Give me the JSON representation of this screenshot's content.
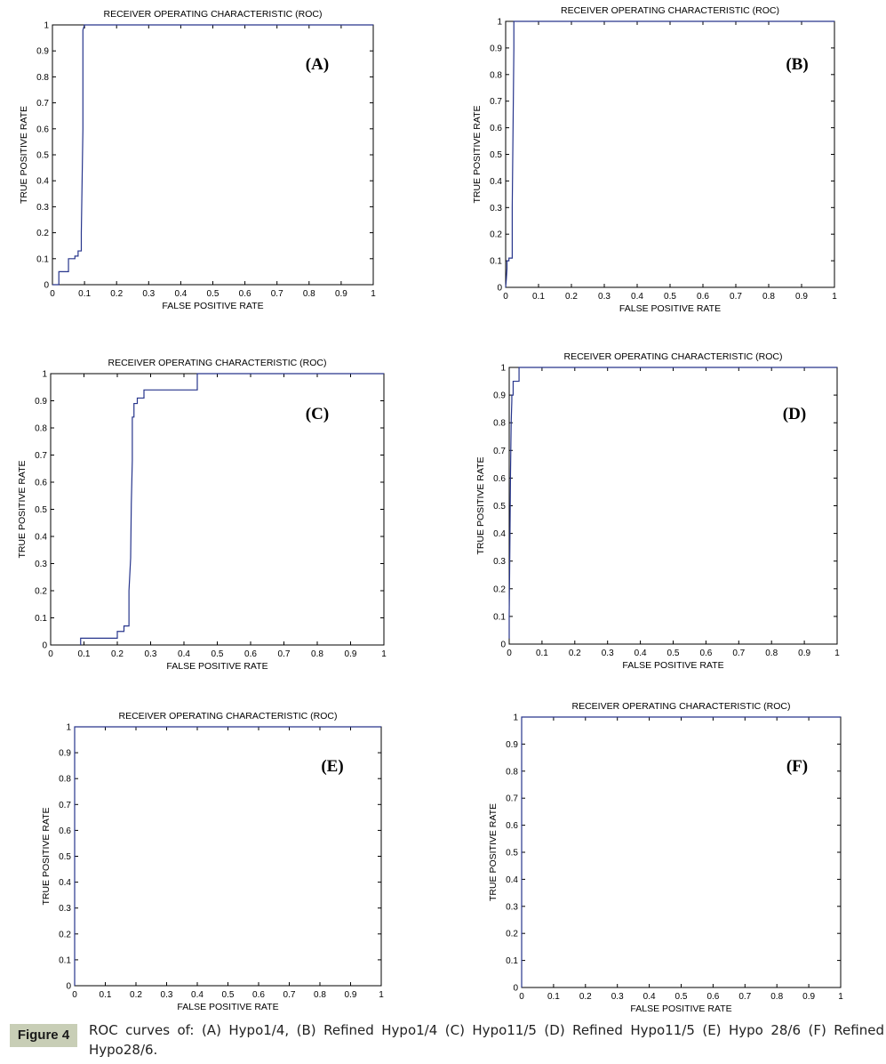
{
  "figure": {
    "caption_label": "Figure 4",
    "caption_text": "ROC curves of: (A) Hypo1/4, (B) Refined Hypo1/4 (C) Hypo11/5 (D) Refined Hypo11/5 (E) Hypo 28/6 (F) Refined Hypo28/6."
  },
  "chart_data": [
    {
      "type": "line",
      "panel": "(A)",
      "title": "RECEIVER OPERATING CHARACTERISTIC (ROC)",
      "xlabel": "FALSE POSITIVE RATE",
      "ylabel": "TRUE POSITIVE RATE",
      "xlim": [
        0,
        1
      ],
      "ylim": [
        0,
        1
      ],
      "x_ticks": [
        "0",
        "0.1",
        "0.2",
        "0.3",
        "0.4",
        "0.5",
        "0.6",
        "0.7",
        "0.8",
        "0.9",
        "1"
      ],
      "y_ticks": [
        "0",
        "0.1",
        "0.2",
        "0.3",
        "0.4",
        "0.5",
        "0.6",
        "0.7",
        "0.8",
        "0.9",
        "1"
      ],
      "grid": false,
      "line_color": "#27358c",
      "series": [
        {
          "x": [
            0.0,
            0.02,
            0.02,
            0.05,
            0.05,
            0.07,
            0.07,
            0.08,
            0.08,
            0.09,
            0.09,
            0.095,
            0.095,
            0.1,
            1.0
          ],
          "y": [
            0.0,
            0.0,
            0.05,
            0.05,
            0.1,
            0.1,
            0.11,
            0.11,
            0.13,
            0.13,
            0.2,
            0.6,
            0.98,
            1.0,
            1.0
          ]
        }
      ]
    },
    {
      "type": "line",
      "panel": "(B)",
      "title": "RECEIVER OPERATING CHARACTERISTIC (ROC)",
      "xlabel": "FALSE POSITIVE RATE",
      "ylabel": "TRUE POSITIVE RATE",
      "xlim": [
        0,
        1
      ],
      "ylim": [
        0,
        1
      ],
      "x_ticks": [
        "0",
        "0.1",
        "0.2",
        "0.3",
        "0.4",
        "0.5",
        "0.6",
        "0.7",
        "0.8",
        "0.9",
        "1"
      ],
      "y_ticks": [
        "0",
        "0.1",
        "0.2",
        "0.3",
        "0.4",
        "0.5",
        "0.6",
        "0.7",
        "0.8",
        "0.9",
        "1"
      ],
      "grid": false,
      "line_color": "#27358c",
      "series": [
        {
          "x": [
            0.0,
            0.002,
            0.004,
            0.004,
            0.01,
            0.01,
            0.02,
            0.02,
            0.025,
            0.025,
            1.0
          ],
          "y": [
            0.0,
            0.03,
            0.07,
            0.1,
            0.1,
            0.11,
            0.11,
            0.3,
            0.9,
            1.0,
            1.0
          ]
        }
      ]
    },
    {
      "type": "line",
      "panel": "(C)",
      "title": "RECEIVER OPERATING CHARACTERISTIC (ROC)",
      "xlabel": "FALSE POSITIVE RATE",
      "ylabel": "TRUE POSITIVE RATE",
      "xlim": [
        0,
        1
      ],
      "ylim": [
        0,
        1
      ],
      "x_ticks": [
        "0",
        "0.1",
        "0.2",
        "0.3",
        "0.4",
        "0.5",
        "0.6",
        "0.7",
        "0.8",
        "0.9",
        "1"
      ],
      "y_ticks": [
        "0",
        "0.1",
        "0.2",
        "0.3",
        "0.4",
        "0.5",
        "0.6",
        "0.7",
        "0.8",
        "0.9",
        "1"
      ],
      "grid": false,
      "line_color": "#27358c",
      "series": [
        {
          "x": [
            0.09,
            0.09,
            0.2,
            0.2,
            0.22,
            0.22,
            0.235,
            0.235,
            0.24,
            0.242,
            0.245,
            0.245,
            0.25,
            0.25,
            0.26,
            0.26,
            0.28,
            0.28,
            0.44,
            0.44,
            1.0
          ],
          "y": [
            0.0,
            0.025,
            0.025,
            0.05,
            0.05,
            0.07,
            0.07,
            0.2,
            0.32,
            0.52,
            0.68,
            0.84,
            0.84,
            0.89,
            0.89,
            0.91,
            0.91,
            0.94,
            0.94,
            1.0,
            1.0
          ]
        }
      ]
    },
    {
      "type": "line",
      "panel": "(D)",
      "title": "RECEIVER OPERATING CHARACTERISTIC (ROC)",
      "xlabel": "FALSE POSITIVE RATE",
      "ylabel": "TRUE POSITIVE RATE",
      "xlim": [
        0,
        1
      ],
      "ylim": [
        0,
        1
      ],
      "x_ticks": [
        "0",
        "0.1",
        "0.2",
        "0.3",
        "0.4",
        "0.5",
        "0.6",
        "0.7",
        "0.8",
        "0.9",
        "1"
      ],
      "y_ticks": [
        "0",
        "0.1",
        "0.2",
        "0.3",
        "0.4",
        "0.5",
        "0.6",
        "0.7",
        "0.8",
        "0.9",
        "1"
      ],
      "grid": false,
      "line_color": "#27358c",
      "series": [
        {
          "x": [
            0.0,
            0.0,
            0.002,
            0.004,
            0.006,
            0.008,
            0.008,
            0.012,
            0.012,
            0.03,
            0.03,
            1.0
          ],
          "y": [
            0.02,
            0.1,
            0.35,
            0.62,
            0.8,
            0.88,
            0.9,
            0.9,
            0.95,
            0.95,
            1.0,
            1.0
          ]
        }
      ]
    },
    {
      "type": "line",
      "panel": "(E)",
      "title": "RECEIVER OPERATING CHARACTERISTIC (ROC)",
      "xlabel": "FALSE POSITIVE RATE",
      "ylabel": "TRUE POSITIVE RATE",
      "xlim": [
        0,
        1
      ],
      "ylim": [
        0,
        1
      ],
      "x_ticks": [
        "0",
        "0.1",
        "0.2",
        "0.3",
        "0.4",
        "0.5",
        "0.6",
        "0.7",
        "0.8",
        "0.9",
        "1"
      ],
      "y_ticks": [
        "0",
        "0.1",
        "0.2",
        "0.3",
        "0.4",
        "0.5",
        "0.6",
        "0.7",
        "0.8",
        "0.9",
        "1"
      ],
      "grid": false,
      "line_color": "#27358c",
      "series": [
        {
          "x": [
            0.0,
            0.0,
            1.0
          ],
          "y": [
            0.0,
            1.0,
            1.0
          ]
        }
      ]
    },
    {
      "type": "line",
      "panel": "(F)",
      "title": "RECEIVER OPERATING CHARACTERISTIC (ROC)",
      "xlabel": "FALSE POSITIVE RATE",
      "ylabel": "TRUE POSITIVE RATE",
      "xlim": [
        0,
        1
      ],
      "ylim": [
        0,
        1
      ],
      "x_ticks": [
        "0",
        "0.1",
        "0.2",
        "0.3",
        "0.4",
        "0.5",
        "0.6",
        "0.7",
        "0.8",
        "0.9",
        "1"
      ],
      "y_ticks": [
        "0",
        "0.1",
        "0.2",
        "0.3",
        "0.4",
        "0.5",
        "0.6",
        "0.7",
        "0.8",
        "0.9",
        "1"
      ],
      "grid": false,
      "line_color": "#27358c",
      "series": [
        {
          "x": [
            0.0,
            0.0,
            1.0
          ],
          "y": [
            0.0,
            1.0,
            1.0
          ]
        }
      ]
    }
  ]
}
